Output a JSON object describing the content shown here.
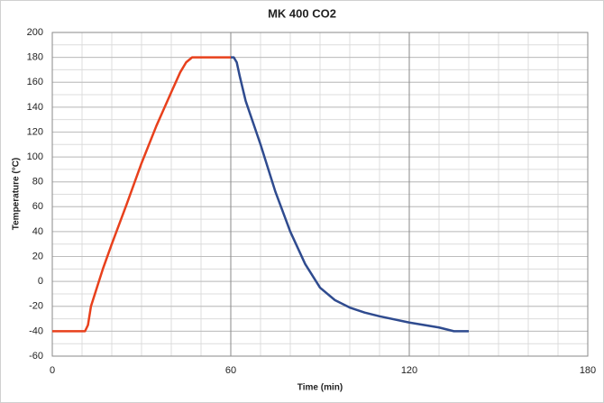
{
  "chart_data": {
    "type": "line",
    "title": "MK 400 CO2",
    "x_label": "Time (min)",
    "y_label": "Temperature (°C)",
    "xlim": [
      0,
      180
    ],
    "xticks": [
      0,
      60,
      120,
      180
    ],
    "ylim": [
      -60,
      200
    ],
    "yticks": [
      -60,
      -40,
      -20,
      0,
      20,
      40,
      60,
      80,
      100,
      120,
      140,
      160,
      180,
      200
    ],
    "grid": true,
    "minor_grid_step": 10,
    "series": [
      {
        "color": "#e8401c",
        "x": [
          0,
          11,
          12,
          13,
          15,
          17,
          20,
          25,
          30,
          35,
          40,
          43,
          45,
          47,
          50,
          60
        ],
        "values": [
          -40,
          -40,
          -35,
          -20,
          -5,
          10,
          30,
          62,
          95,
          125,
          152,
          168,
          176,
          180,
          180,
          180
        ]
      },
      {
        "color": "#2f4b8f",
        "x": [
          60,
          61,
          62,
          63,
          65,
          70,
          75,
          80,
          85,
          90,
          95,
          100,
          105,
          110,
          120,
          130,
          135,
          140
        ],
        "values": [
          180,
          180,
          176,
          165,
          145,
          110,
          72,
          40,
          14,
          -5,
          -15,
          -21,
          -25,
          -28,
          -33,
          -37,
          -40,
          -40
        ]
      }
    ]
  }
}
